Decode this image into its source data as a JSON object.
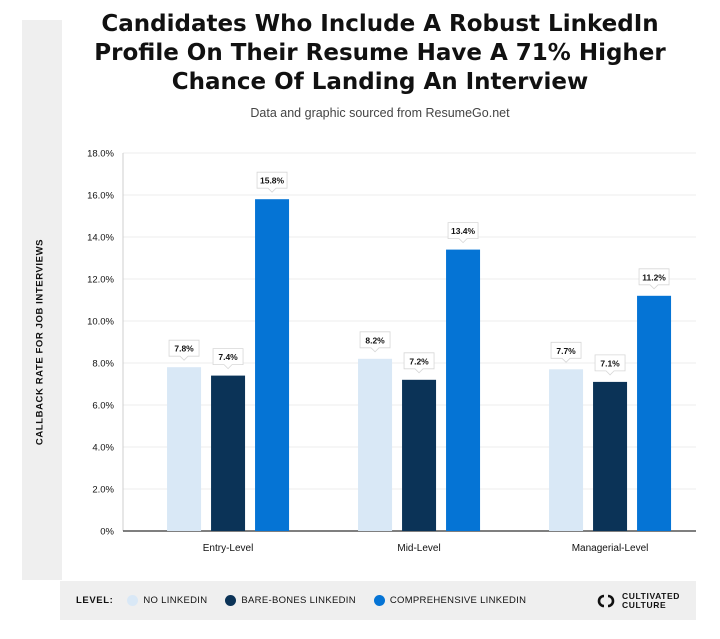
{
  "title": "Candidates Who Include A Robust LinkedIn Profile On Their Resume Have A 71% Higher Chance Of Landing An Interview",
  "title_lines": [
    "Candidates Who Include A Robust LinkedIn",
    "Profile On Their Resume Have A 71% Higher",
    "Chance Of Landing An Interview"
  ],
  "source": "Data and graphic sourced from ResumeGo.net",
  "legend": {
    "title": "LEVEL:",
    "items": [
      {
        "label": "NO LINKEDIN",
        "color": "#d9e8f6"
      },
      {
        "label": "BARE-BONES LINKEDIN",
        "color": "#0b3357"
      },
      {
        "label": "COMPREHENSIVE LINKEDIN",
        "color": "#0574d5"
      }
    ]
  },
  "brand": {
    "line1": "CULTIVATED",
    "line2": "CULTURE"
  },
  "chart_data": {
    "type": "bar",
    "title": "Candidates Who Include A Robust LinkedIn Profile On Their Resume Have A 71% Higher Chance Of Landing An Interview",
    "xlabel": "",
    "ylabel": "CALLBACK RATE FOR JOB INTERVIEWS",
    "categories": [
      "Entry-Level",
      "Mid-Level",
      "Managerial-Level"
    ],
    "ylim": [
      0,
      18
    ],
    "yticks": [
      0,
      2,
      4,
      6,
      8,
      10,
      12,
      14,
      16,
      18
    ],
    "ytick_labels": [
      "0%",
      "2.0%",
      "4.0%",
      "6.0%",
      "8.0%",
      "10.0%",
      "12.0%",
      "14.0%",
      "16.0%",
      "18.0%"
    ],
    "grid": true,
    "legend_position": "bottom",
    "series": [
      {
        "name": "NO LINKEDIN",
        "color": "#d9e8f6",
        "values": [
          7.8,
          8.2,
          7.7
        ],
        "labels": [
          "7.8%",
          "8.2%",
          "7.7%"
        ]
      },
      {
        "name": "BARE-BONES LINKEDIN",
        "color": "#0b3357",
        "values": [
          7.4,
          7.2,
          7.1
        ],
        "labels": [
          "7.4%",
          "7.2%",
          "7.1%"
        ]
      },
      {
        "name": "COMPREHENSIVE LINKEDIN",
        "color": "#0574d5",
        "values": [
          15.8,
          13.4,
          11.2
        ],
        "labels": [
          "15.8%",
          "13.4%",
          "11.2%"
        ]
      }
    ]
  }
}
